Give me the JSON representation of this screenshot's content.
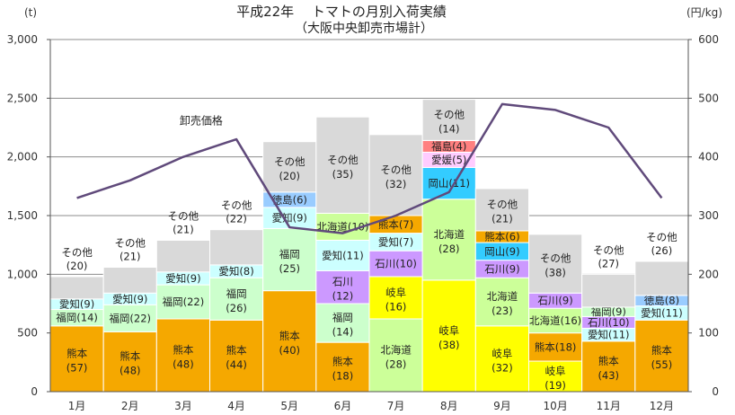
{
  "chart_data": {
    "type": "bar",
    "stacked": true,
    "title": "平成22年　 トマトの月別入荷実績",
    "subtitle": "（大阪中央卸売市場計）",
    "left_axis_unit": "(t)",
    "right_axis_unit": "(円/kg)",
    "ylim": [
      0,
      3000
    ],
    "y2lim": [
      0,
      600
    ],
    "yticks": [
      "0",
      "500",
      "1,000",
      "1,500",
      "2,000",
      "2,500",
      "3,000"
    ],
    "y2ticks": [
      "0",
      "100",
      "200",
      "300",
      "400",
      "500",
      "600"
    ],
    "grid": true,
    "categories": [
      "1月",
      "2月",
      "3月",
      "4月",
      "5月",
      "6月",
      "7月",
      "8月",
      "9月",
      "10月",
      "11月",
      "12月"
    ],
    "colors": {
      "熊本": "#f5a800",
      "福岡": "#ccffcc",
      "愛知": "#ccffff",
      "徳島": "#99ccff",
      "北海道": "#ccff99",
      "石川": "#cc99ff",
      "岐阜": "#ffff00",
      "岡山": "#33ccff",
      "愛媛": "#ffccff",
      "福島": "#ff8080",
      "その他": "#d9d9d9"
    },
    "bars": [
      {
        "month": "1月",
        "segments": [
          {
            "name": "熊本",
            "value": 560,
            "label": "熊本",
            "share": "(57)"
          },
          {
            "name": "福岡",
            "value": 140,
            "label": "福岡(14)"
          },
          {
            "name": "愛知",
            "value": 90,
            "label": "愛知(9)"
          },
          {
            "name": "その他",
            "value": 190,
            "label": "その他",
            "share": "(20)",
            "label_above": true
          }
        ]
      },
      {
        "month": "2月",
        "segments": [
          {
            "name": "熊本",
            "value": 510,
            "label": "熊本",
            "share": "(48)"
          },
          {
            "name": "福岡",
            "value": 230,
            "label": "福岡(22)"
          },
          {
            "name": "愛知",
            "value": 100,
            "label": "愛知(9)"
          },
          {
            "name": "その他",
            "value": 220,
            "label": "その他",
            "share": "(21)",
            "label_above": true
          }
        ]
      },
      {
        "month": "3月",
        "segments": [
          {
            "name": "熊本",
            "value": 620,
            "label": "熊本",
            "share": "(48)"
          },
          {
            "name": "福岡",
            "value": 290,
            "label": "福岡(22)"
          },
          {
            "name": "愛知",
            "value": 110,
            "label": "愛知(9)"
          },
          {
            "name": "その他",
            "value": 270,
            "label": "その他",
            "share": "(21)",
            "label_above": true
          }
        ]
      },
      {
        "month": "4月",
        "segments": [
          {
            "name": "熊本",
            "value": 610,
            "label": "熊本",
            "share": "(44)"
          },
          {
            "name": "福岡",
            "value": 360,
            "label": "福岡",
            "share": "(26)"
          },
          {
            "name": "愛知",
            "value": 110,
            "label": "愛知(8)"
          },
          {
            "name": "その他",
            "value": 300,
            "label": "その他",
            "share": "(22)",
            "label_above": true
          }
        ]
      },
      {
        "month": "5月",
        "segments": [
          {
            "name": "熊本",
            "value": 860,
            "label": "熊本",
            "share": "(40)"
          },
          {
            "name": "福岡",
            "value": 530,
            "label": "福岡",
            "share": "(25)"
          },
          {
            "name": "愛知",
            "value": 180,
            "label": "愛知(9)"
          },
          {
            "name": "徳島",
            "value": 130,
            "label": "徳島(6)"
          },
          {
            "name": "その他",
            "value": 430,
            "label": "その他",
            "share": "(20)"
          }
        ]
      },
      {
        "month": "6月",
        "segments": [
          {
            "name": "熊本",
            "value": 420,
            "label": "熊本",
            "share": "(18)"
          },
          {
            "name": "福岡",
            "value": 330,
            "label": "福岡",
            "share": "(14)"
          },
          {
            "name": "石川",
            "value": 280,
            "label": "石川",
            "share": "(12)"
          },
          {
            "name": "愛知",
            "value": 260,
            "label": "愛知(11)"
          },
          {
            "name": "北海道",
            "value": 230,
            "label": "北海道(10)"
          },
          {
            "name": "その他",
            "value": 820,
            "label": "その他",
            "share": "(35)"
          }
        ]
      },
      {
        "month": "7月",
        "segments": [
          {
            "name": "北海道",
            "value": 620,
            "label": "北海道",
            "share": "(28)"
          },
          {
            "name": "岐阜",
            "value": 360,
            "label": "岐阜",
            "share": "(16)"
          },
          {
            "name": "石川",
            "value": 220,
            "label": "石川(10)"
          },
          {
            "name": "愛知",
            "value": 150,
            "label": "愛知(7)"
          },
          {
            "name": "熊本",
            "value": 150,
            "label": "熊本(7)"
          },
          {
            "name": "その他",
            "value": 690,
            "label": "その他",
            "share": "(32)"
          }
        ]
      },
      {
        "month": "8月",
        "segments": [
          {
            "name": "岐阜",
            "value": 950,
            "label": "岐阜",
            "share": "(38)"
          },
          {
            "name": "北海道",
            "value": 690,
            "label": "北海道",
            "share": "(28)"
          },
          {
            "name": "岡山",
            "value": 270,
            "label": "岡山(11)"
          },
          {
            "name": "愛媛",
            "value": 130,
            "label": "愛媛(5)"
          },
          {
            "name": "福島",
            "value": 100,
            "label": "福島(4)"
          },
          {
            "name": "その他",
            "value": 350,
            "label": "その他",
            "share": "(14)"
          }
        ]
      },
      {
        "month": "9月",
        "segments": [
          {
            "name": "岐阜",
            "value": 560,
            "label": "岐阜",
            "share": "(32)"
          },
          {
            "name": "北海道",
            "value": 410,
            "label": "北海道",
            "share": "(23)"
          },
          {
            "name": "石川",
            "value": 150,
            "label": "石川(9)"
          },
          {
            "name": "岡山",
            "value": 150,
            "label": "岡山(9)"
          },
          {
            "name": "熊本",
            "value": 100,
            "label": "熊本(6)"
          },
          {
            "name": "その他",
            "value": 360,
            "label": "その他",
            "share": "(21)"
          }
        ]
      },
      {
        "month": "10月",
        "segments": [
          {
            "name": "岐阜",
            "value": 260,
            "label": "岐阜",
            "share": "(19)"
          },
          {
            "name": "熊本",
            "value": 240,
            "label": "熊本(18)"
          },
          {
            "name": "北海道",
            "value": 210,
            "label": "北海道(16)"
          },
          {
            "name": "石川",
            "value": 130,
            "label": "石川(9)"
          },
          {
            "name": "その他",
            "value": 500,
            "label": "その他",
            "share": "(38)"
          }
        ]
      },
      {
        "month": "11月",
        "segments": [
          {
            "name": "熊本",
            "value": 430,
            "label": "熊本",
            "share": "(43)"
          },
          {
            "name": "愛知",
            "value": 110,
            "label": "愛知(11)"
          },
          {
            "name": "石川",
            "value": 100,
            "label": "石川(10)"
          },
          {
            "name": "福岡",
            "value": 80,
            "label": "福岡(9)"
          },
          {
            "name": "その他",
            "value": 280,
            "label": "その他",
            "share": "(27)",
            "label_above": true
          }
        ]
      },
      {
        "month": "12月",
        "segments": [
          {
            "name": "熊本",
            "value": 610,
            "label": "熊本",
            "share": "(55)"
          },
          {
            "name": "愛知",
            "value": 120,
            "label": "愛知(11)"
          },
          {
            "name": "徳島",
            "value": 90,
            "label": "徳島(8)"
          },
          {
            "name": "その他",
            "value": 290,
            "label": "その他",
            "share": "(26)",
            "label_above": true
          }
        ]
      }
    ],
    "price_series": {
      "name": "卸売価格",
      "values": [
        330,
        360,
        400,
        430,
        280,
        270,
        300,
        340,
        490,
        480,
        450,
        330
      ]
    }
  }
}
